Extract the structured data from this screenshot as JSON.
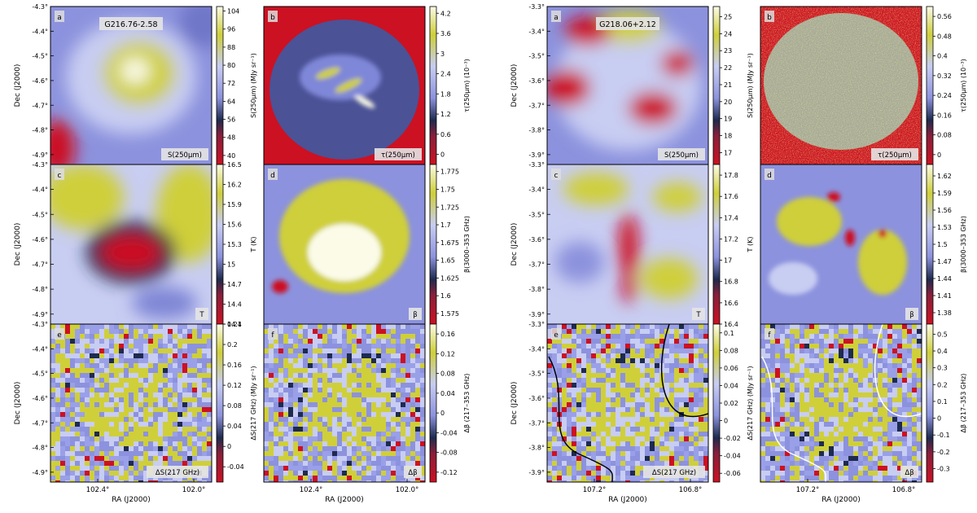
{
  "figure": {
    "groups": [
      {
        "name": "G216.76-2.58",
        "ra_label": "RA (J2000)",
        "dec_label": "Dec (J2000)",
        "ra_ticks": [
          "102.4°",
          "102.0°"
        ],
        "dec_ticks": [
          "-4.3°",
          "-4.4°",
          "-4.5°",
          "-4.6°",
          "-4.7°",
          "-4.8°",
          "-4.9°"
        ]
      },
      {
        "name": "G218.06+2.12",
        "ra_label": "RA (J2000)",
        "dec_label": "Dec (J2000)",
        "ra_ticks": [
          "107.2°",
          "106.8°"
        ],
        "dec_ticks": [
          "-3.3°",
          "-3.4°",
          "-3.5°",
          "-3.6°",
          "-3.7°",
          "-3.8°",
          "-3.9°"
        ]
      }
    ],
    "colors": {
      "low": "#cc1122",
      "dark": "#1e2a4e",
      "mid": "#8c92dd",
      "light": "#c8cdf2",
      "high": "#cfcf3a",
      "peak": "#fbfbe8"
    }
  },
  "chart_data": [
    {
      "type": "heatmap",
      "group": 0,
      "label": "a",
      "map_label": "S(250μm)",
      "cbar_label": "S(250μm) (MJy sr⁻¹)",
      "cbar_ticks": [
        104,
        96,
        88,
        80,
        72,
        64,
        56,
        48,
        40
      ],
      "range": [
        36,
        106
      ],
      "grid": false
    },
    {
      "type": "heatmap",
      "group": 0,
      "label": "b",
      "map_label": "τ(250μm)",
      "cbar_label": "τ(250μm) (10⁻³)",
      "cbar_ticks": [
        4.2,
        3.6,
        3.0,
        2.4,
        1.8,
        1.2,
        0.6,
        0.0
      ],
      "range": [
        -0.3,
        4.4
      ],
      "grid": false
    },
    {
      "type": "heatmap",
      "group": 0,
      "label": "c",
      "map_label": "T",
      "cbar_label": "T (K)",
      "cbar_ticks": [
        16.5,
        16.2,
        15.9,
        15.6,
        15.3,
        15.0,
        14.7,
        14.4,
        14.1
      ],
      "range": [
        14.1,
        16.5
      ],
      "grid": false
    },
    {
      "type": "heatmap",
      "group": 0,
      "label": "d",
      "map_label": "β",
      "cbar_label": "β(3000–353 GHz)",
      "cbar_ticks": [
        1.775,
        1.75,
        1.725,
        1.7,
        1.675,
        1.65,
        1.625,
        1.6,
        1.575
      ],
      "range": [
        1.56,
        1.785
      ],
      "grid": false
    },
    {
      "type": "heatmap",
      "group": 0,
      "label": "e",
      "map_label": "ΔS(217 GHz)",
      "cbar_label": "ΔS(217 GHz) (MJy sr⁻¹)",
      "cbar_ticks": [
        0.24,
        0.2,
        0.16,
        0.12,
        0.08,
        0.04,
        0.0,
        -0.04
      ],
      "range": [
        -0.07,
        0.24
      ],
      "grid": false
    },
    {
      "type": "heatmap",
      "group": 0,
      "label": "f",
      "map_label": "Δβ",
      "cbar_label": "Δβ (217–353 GHz)",
      "cbar_ticks": [
        0.16,
        0.12,
        0.08,
        0.04,
        0.0,
        -0.04,
        -0.08,
        -0.12
      ],
      "range": [
        -0.14,
        0.18
      ],
      "grid": false
    },
    {
      "type": "heatmap",
      "group": 1,
      "label": "a",
      "map_label": "S(250μm)",
      "cbar_label": "S(250μm) (MJy sr⁻¹)",
      "cbar_ticks": [
        25,
        24,
        23,
        22,
        21,
        20,
        19,
        18,
        17
      ],
      "range": [
        16.3,
        25.6
      ],
      "grid": false
    },
    {
      "type": "heatmap",
      "group": 1,
      "label": "b",
      "map_label": "τ(250μm)",
      "cbar_label": "τ(250μm) (10⁻³)",
      "cbar_ticks": [
        0.56,
        0.48,
        0.4,
        0.32,
        0.24,
        0.16,
        0.08,
        0.0
      ],
      "range": [
        -0.04,
        0.6
      ],
      "grid": false
    },
    {
      "type": "heatmap",
      "group": 1,
      "label": "c",
      "map_label": "T",
      "cbar_label": "T (K)",
      "cbar_ticks": [
        17.8,
        17.6,
        17.4,
        17.2,
        17.0,
        16.8,
        16.6,
        16.4
      ],
      "range": [
        16.4,
        17.9
      ],
      "grid": false
    },
    {
      "type": "heatmap",
      "group": 1,
      "label": "d",
      "map_label": "β",
      "cbar_label": "β(3000–353 GHz)",
      "cbar_ticks": [
        1.62,
        1.59,
        1.56,
        1.53,
        1.5,
        1.47,
        1.44,
        1.41,
        1.38
      ],
      "range": [
        1.36,
        1.64
      ],
      "grid": false
    },
    {
      "type": "heatmap",
      "group": 1,
      "label": "e",
      "map_label": "ΔS(217 GHz)",
      "cbar_label": "ΔS(217 GHz) (MJy sr⁻¹)",
      "cbar_ticks": [
        0.1,
        0.08,
        0.06,
        0.04,
        0.02,
        0.0,
        -0.02,
        -0.04,
        -0.06
      ],
      "range": [
        -0.07,
        0.11
      ],
      "grid": false
    },
    {
      "type": "heatmap",
      "group": 1,
      "label": "f",
      "map_label": "Δβ",
      "cbar_label": "Δβ (217–353 GHz)",
      "cbar_ticks": [
        0.5,
        0.4,
        0.3,
        0.2,
        0.1,
        0.0,
        -0.1,
        -0.2,
        -0.3
      ],
      "range": [
        -0.38,
        0.56
      ],
      "grid": false
    }
  ]
}
